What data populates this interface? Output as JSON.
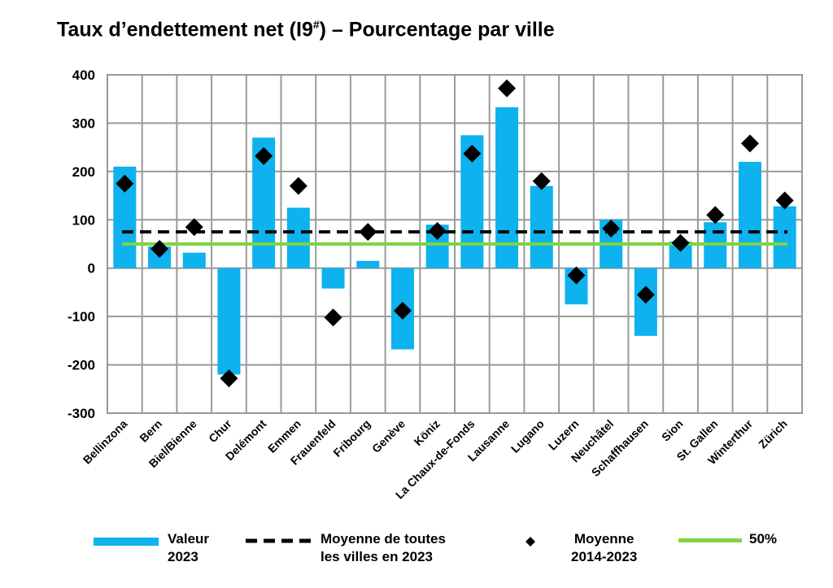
{
  "title": {
    "main": "Taux d’endettement net (I9",
    "sup": "#",
    "rest": ") – Pourcentage par ville"
  },
  "colors": {
    "bar": "#0db2ee",
    "mean_line": "#000000",
    "marker": "#000000",
    "target_line": "#7ed43f",
    "grid": "#999999"
  },
  "legend": {
    "bar_line1": "Valeur",
    "bar_line2": "2023",
    "mean_line1": "Moyenne de toutes",
    "mean_line2": "les villes en 2023",
    "marker_line1": "Moyenne",
    "marker_line2": "2014-2023",
    "target_label": "50%"
  },
  "chart_data": {
    "type": "bar",
    "title": "Taux d’endettement net (I9#) – Pourcentage par ville",
    "xlabel": "",
    "ylabel": "",
    "ylim": [
      -300,
      400
    ],
    "yticks": [
      400,
      300,
      200,
      100,
      0,
      -100,
      -200,
      -300
    ],
    "grid": true,
    "categories": [
      "Bellinzona",
      "Bern",
      "Biel/Bienne",
      "Chur",
      "Delémont",
      "Emmen",
      "Frauenfeld",
      "Fribourg",
      "Genève",
      "Köniz",
      "La Chaux-de-Fonds",
      "Lausanne",
      "Lugano",
      "Luzern",
      "Neuchâtel",
      "Schaffhausen",
      "Sion",
      "St. Gallen",
      "Winterthur",
      "Zürich"
    ],
    "series": [
      {
        "name": "Valeur 2023",
        "kind": "bar",
        "values": [
          210,
          45,
          32,
          -220,
          270,
          125,
          -42,
          15,
          -168,
          90,
          275,
          333,
          170,
          -75,
          100,
          -140,
          55,
          95,
          220,
          128
        ]
      },
      {
        "name": "Moyenne 2014-2023",
        "kind": "marker",
        "values": [
          175,
          40,
          85,
          -228,
          232,
          170,
          -102,
          75,
          -88,
          77,
          237,
          372,
          180,
          -15,
          82,
          -55,
          52,
          110,
          258,
          140
        ]
      }
    ],
    "reference_lines": [
      {
        "name": "Moyenne de toutes les villes en 2023",
        "value": 75,
        "style": "dashed"
      },
      {
        "name": "50%",
        "value": 50,
        "style": "solid"
      }
    ]
  }
}
